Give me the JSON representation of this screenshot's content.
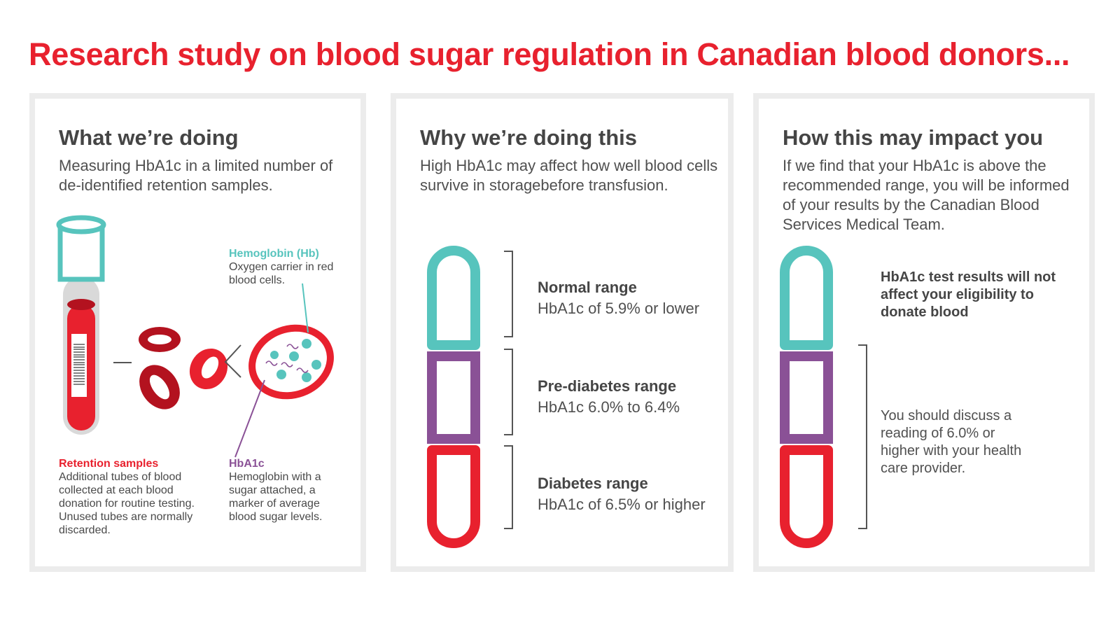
{
  "header": {
    "title": "Research study on blood sugar regulation in Canadian blood donors..."
  },
  "panels": [
    {
      "title": "What we’re doing",
      "subtitle": "Measuring HbA1c in a limited number of de-identified retention samples.",
      "labels": {
        "hemoglobin_title": "Hemoglobin (Hb)",
        "hemoglobin_text": "Oxygen carrier in red blood cells.",
        "retention_title": "Retention samples",
        "retention_text": "Additional tubes of blood collected at each blood donation for routine testing. Unused tubes are normally discarded.",
        "hba1c_title": "HbA1c",
        "hba1c_text": "Hemoglobin with a sugar attached, a marker of average blood sugar levels."
      }
    },
    {
      "title": "Why we’re doing this",
      "subtitle": "High HbA1c may affect how well blood cells survive in storagebefore transfusion.",
      "ranges": [
        {
          "name": "Normal range",
          "value": "HbA1c of 5.9% or lower"
        },
        {
          "name": "Pre-diabetes range",
          "value": "HbA1c 6.0% to 6.4%"
        },
        {
          "name": "Diabetes range",
          "value": "HbA1c of 6.5% or higher"
        }
      ]
    },
    {
      "title": "How this may impact you",
      "subtitle": "If we find that your HbA1c is above the recommended range, you will be informed of your results by the Canadian Blood Services Medical Team.",
      "note_bold": "HbA1c test results will not affect your eligibility to donate blood",
      "note": "You should discuss a reading of 6.0% or higher with your health care provider."
    }
  ],
  "colors": {
    "red": "#e8212e",
    "dark_red": "#b3121f",
    "teal": "#57c4bd",
    "purple": "#8a5196",
    "gray": "#ececec"
  },
  "icons": [
    "blood-tube-icon",
    "red-blood-cell-icon",
    "hemoglobin-cell-icon",
    "range-tube-icon",
    "bracket-icon"
  ]
}
